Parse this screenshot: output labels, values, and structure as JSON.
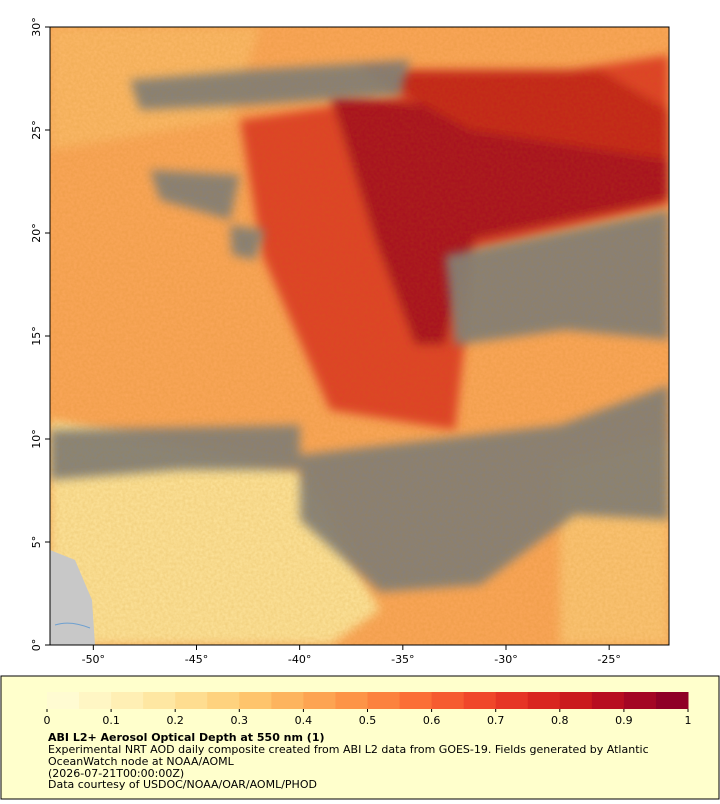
{
  "map": {
    "xlim": [
      -52.1,
      -22.1
    ],
    "ylim": [
      0,
      30
    ],
    "xticks": [
      {
        "value": -50,
        "label": "-50°"
      },
      {
        "value": -45,
        "label": "-45°"
      },
      {
        "value": -40,
        "label": "-40°"
      },
      {
        "value": -35,
        "label": "-35°"
      },
      {
        "value": -30,
        "label": "-30°"
      },
      {
        "value": -25,
        "label": "-25°"
      }
    ],
    "yticks": [
      {
        "value": 0,
        "label": "0°"
      },
      {
        "value": 5,
        "label": "5°"
      },
      {
        "value": 10,
        "label": "10°"
      },
      {
        "value": 15,
        "label": "15°"
      },
      {
        "value": 20,
        "label": "20°"
      },
      {
        "value": 25,
        "label": "25°"
      },
      {
        "value": 30,
        "label": "30°"
      }
    ]
  },
  "colorbar": {
    "lim": [
      0,
      1
    ],
    "ticks": [
      0,
      0.1,
      0.2,
      0.3,
      0.4,
      0.5,
      0.6,
      0.7,
      0.8,
      0.9,
      1
    ],
    "colors": [
      "#fffbd2",
      "#fff6c4",
      "#ffefb4",
      "#fee7a2",
      "#fedd90",
      "#fed27e",
      "#fec46c",
      "#fdb45e",
      "#fda452",
      "#fd9447",
      "#fc823e",
      "#fb6e36",
      "#f65b30",
      "#f0472a",
      "#e63525",
      "#d9261f",
      "#ca1a1d",
      "#b80e20",
      "#a40624",
      "#8f0026"
    ]
  },
  "caption": {
    "title": "ABI L2+ Aerosol Optical Depth at 550 nm (1)",
    "lines": [
      "Experimental NRT AOD daily composite created from ABI L2 data from GOES-19. Fields generated by Atlantic",
      "OceanWatch node at NOAA/AOML",
      "(2026-07-21T00:00:00Z)",
      "Data courtesy of USDOC/NOAA/OAR/AOML/PHOD"
    ]
  }
}
